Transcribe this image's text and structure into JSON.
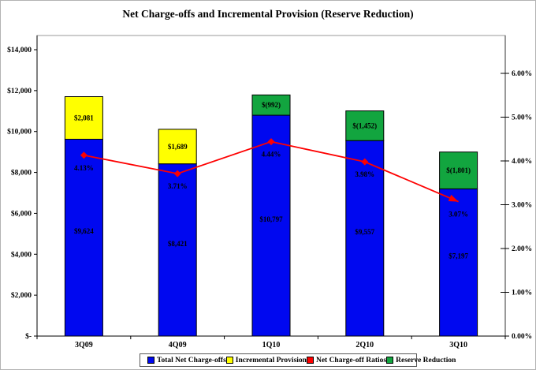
{
  "title": "Net Charge-offs and Incremental Provision (Reserve Reduction)",
  "chart_data": {
    "type": "combo-stacked-bar-line",
    "categories": [
      "3Q09",
      "4Q09",
      "1Q10",
      "2Q10",
      "3Q10"
    ],
    "bar_series": [
      {
        "name": "Total Net Charge-offs",
        "color": "#0008F0",
        "label_color": "#ffffff",
        "values": [
          9624,
          8421,
          10797,
          9557,
          7197
        ],
        "labels": [
          "$9,624",
          "$8,421",
          "$10,797",
          "$9,557",
          "$7,197"
        ]
      },
      {
        "name": "Incremental Provision",
        "color": "#FFFF00",
        "label_color": "#000000",
        "values": [
          2081,
          1689,
          null,
          null,
          null
        ],
        "labels": [
          "$2,081",
          "$1,689",
          "",
          "",
          ""
        ]
      },
      {
        "name": "Reserve Reduction",
        "color": "#12A53F",
        "label_color": "#000000",
        "values": [
          null,
          null,
          992,
          1452,
          1801
        ],
        "labels": [
          "",
          "",
          "$(992)",
          "$(1,452)",
          "$(1,801)"
        ]
      }
    ],
    "line_series": {
      "name": "Net Charge-off Ratios",
      "color": "#FE0000",
      "label_color": "#ffffff",
      "values": [
        4.13,
        3.71,
        4.44,
        3.98,
        3.07
      ],
      "labels": [
        "4.13%",
        "3.71%",
        "4.44%",
        "3.98%",
        "3.07%"
      ]
    },
    "left_axis": {
      "min": 0,
      "max": 14000,
      "step": 2000,
      "ticks": [
        {
          "v": 14000,
          "label": "$14,000"
        },
        {
          "v": 12000,
          "label": "$12,000"
        },
        {
          "v": 10000,
          "label": "$10,000"
        },
        {
          "v": 8000,
          "label": "$8,000"
        },
        {
          "v": 6000,
          "label": "$6,000"
        },
        {
          "v": 4000,
          "label": "$4,000"
        },
        {
          "v": 2000,
          "label": "$2,000"
        },
        {
          "v": 0,
          "label": "$-"
        }
      ]
    },
    "right_axis": {
      "min": 0,
      "max": 6,
      "step": 1,
      "ticks": [
        {
          "v": 6,
          "label": "6.00%"
        },
        {
          "v": 5,
          "label": "5.00%"
        },
        {
          "v": 4,
          "label": "4.00%"
        },
        {
          "v": 3,
          "label": "3.00%"
        },
        {
          "v": 2,
          "label": "2.00%"
        },
        {
          "v": 1,
          "label": "1.00%"
        },
        {
          "v": 0,
          "label": "0.00%"
        }
      ]
    },
    "legend": [
      {
        "label": "Total Net Charge-offs",
        "color": "#0008F0"
      },
      {
        "label": "Incremental Provision",
        "color": "#FFFF00"
      },
      {
        "label": "Net Charge-off Ratios",
        "color": "#FE0000"
      },
      {
        "label": "Reserve Reduction",
        "color": "#12A53F"
      }
    ],
    "grid": false,
    "legend_position": "bottom"
  }
}
